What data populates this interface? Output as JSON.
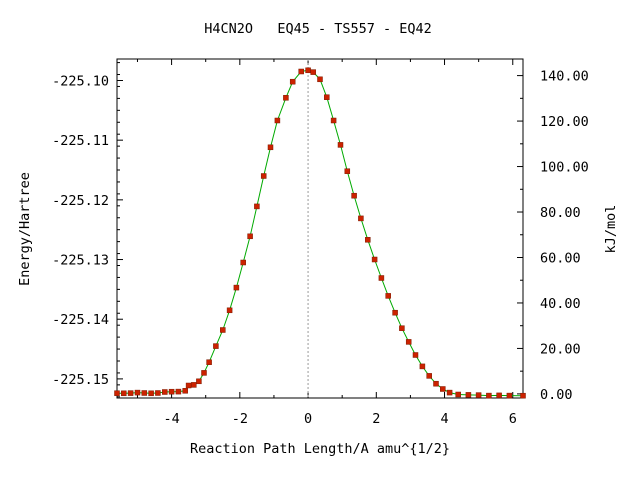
{
  "chart_data": {
    "type": "line",
    "title": "H4CN2O   EQ45 - TS557 - EQ42",
    "xlabel": "Reaction Path Length/A amu^{1/2}",
    "ylabel": "Energy/Hartree",
    "y2label": "kJ/mol",
    "xlim": [
      -5.6,
      6.3
    ],
    "ylim": [
      -225.1532,
      -225.0964
    ],
    "y2lim": [
      -1.8,
      147.3
    ],
    "x_ticks": [
      -4,
      -2,
      0,
      2,
      4,
      6
    ],
    "x_tick_labels": [
      "-4",
      "-2",
      "0",
      "2",
      "4",
      "6"
    ],
    "y_ticks": [
      -225.1,
      -225.11,
      -225.12,
      -225.13,
      -225.14,
      -225.15
    ],
    "y_tick_labels": [
      "-225.10",
      "-225.11",
      "-225.12",
      "-225.13",
      "-225.14",
      "-225.15"
    ],
    "y2_ticks": [
      140,
      120,
      100,
      80,
      60,
      40,
      20,
      0
    ],
    "y2_tick_labels": [
      "140.00",
      "120.00",
      "100.00",
      "80.00",
      "60.00",
      "40.00",
      "20.00",
      "0.00"
    ],
    "ts_marker_x": 0,
    "grid": false,
    "series": [
      {
        "color": "#00aa00",
        "marker_color": "#cc2200",
        "points": [
          [
            -5.6,
            -225.1524
          ],
          [
            -5.4,
            -225.15242
          ],
          [
            -5.2,
            -225.15238
          ],
          [
            -5.0,
            -225.1523
          ],
          [
            -4.8,
            -225.15236
          ],
          [
            -4.6,
            -225.15242
          ],
          [
            -4.4,
            -225.15236
          ],
          [
            -4.2,
            -225.1522
          ],
          [
            -4.0,
            -225.15215
          ],
          [
            -3.8,
            -225.15212
          ],
          [
            -3.6,
            -225.152
          ],
          [
            -3.5,
            -225.1511
          ],
          [
            -3.35,
            -225.151
          ],
          [
            -3.2,
            -225.1504
          ],
          [
            -3.05,
            -225.149
          ],
          [
            -2.9,
            -225.1472
          ],
          [
            -2.7,
            -225.1445
          ],
          [
            -2.5,
            -225.1418
          ],
          [
            -2.3,
            -225.1385
          ],
          [
            -2.1,
            -225.1347
          ],
          [
            -1.9,
            -225.1305
          ],
          [
            -1.7,
            -225.1261
          ],
          [
            -1.5,
            -225.1211
          ],
          [
            -1.3,
            -225.116
          ],
          [
            -1.1,
            -225.1112
          ],
          [
            -0.9,
            -225.1067
          ],
          [
            -0.65,
            -225.1029
          ],
          [
            -0.45,
            -225.1002
          ],
          [
            -0.2,
            -225.0985
          ],
          [
            0.0,
            -225.0983
          ],
          [
            0.15,
            -225.0986
          ],
          [
            0.35,
            -225.0998
          ],
          [
            0.55,
            -225.1028
          ],
          [
            0.75,
            -225.1067
          ],
          [
            0.95,
            -225.1108
          ],
          [
            1.15,
            -225.1152
          ],
          [
            1.35,
            -225.1193
          ],
          [
            1.55,
            -225.1231
          ],
          [
            1.75,
            -225.1267
          ],
          [
            1.95,
            -225.13
          ],
          [
            2.15,
            -225.1331
          ],
          [
            2.35,
            -225.1361
          ],
          [
            2.55,
            -225.1389
          ],
          [
            2.75,
            -225.1415
          ],
          [
            2.95,
            -225.1438
          ],
          [
            3.15,
            -225.146
          ],
          [
            3.35,
            -225.1479
          ],
          [
            3.55,
            -225.1495
          ],
          [
            3.75,
            -225.1508
          ],
          [
            3.95,
            -225.1517
          ],
          [
            4.15,
            -225.1523
          ],
          [
            4.4,
            -225.15262
          ],
          [
            4.7,
            -225.15268
          ],
          [
            5.0,
            -225.15272
          ],
          [
            5.3,
            -225.1528
          ],
          [
            5.6,
            -225.15276
          ],
          [
            5.9,
            -225.1528
          ],
          [
            6.3,
            -225.15282
          ]
        ]
      }
    ]
  }
}
